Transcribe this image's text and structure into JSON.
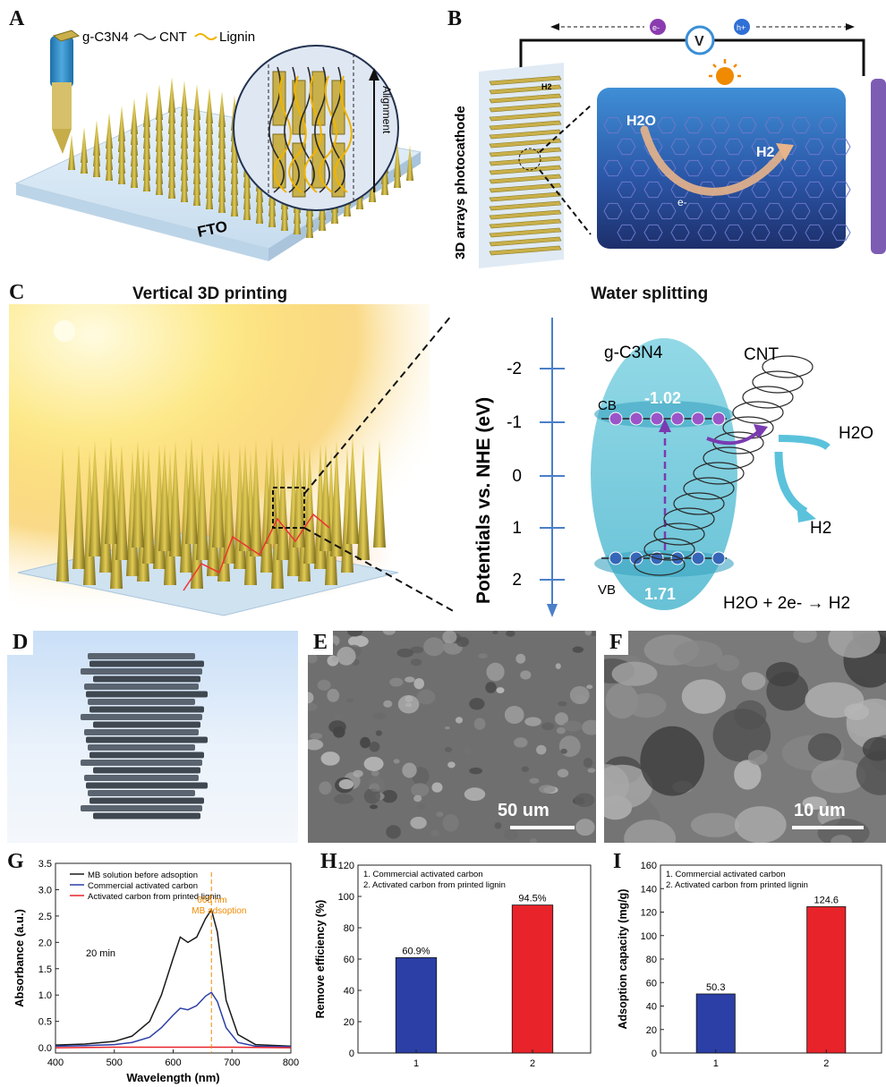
{
  "panels": {
    "A": {
      "letter": "A",
      "legend": [
        {
          "name": "g-C3N4"
        },
        {
          "name": "CNT"
        },
        {
          "name": "Lignin"
        }
      ],
      "substrate": "FTO",
      "alignment": "Alignment",
      "caption": "Vertical 3D printing"
    },
    "B": {
      "letter": "B",
      "side_label": "3D arrays photocathode",
      "h2_small": "H2",
      "h2o": "H2O",
      "h2": "H2",
      "electron": "e-",
      "hole": "h+",
      "volt": "V",
      "caption": "Water splitting"
    },
    "C": {
      "letter": "C",
      "axis_title": "Potentials vs. NHE (eV)",
      "ticks": [
        "-2",
        "-1",
        "0",
        "1",
        "2"
      ],
      "material": "g-C3N4",
      "cnt": "CNT",
      "cb": "CB",
      "vb": "VB",
      "cb_value": "-1.02",
      "vb_value": "1.71",
      "h2o": "H2O",
      "h2": "H2",
      "reaction": "H2O + 2e- → H2"
    },
    "D": {
      "letter": "D"
    },
    "E": {
      "letter": "E",
      "scale": "50 um"
    },
    "F": {
      "letter": "F",
      "scale": "10 um"
    },
    "G": {
      "letter": "G"
    },
    "H": {
      "letter": "H"
    },
    "I": {
      "letter": "I"
    }
  },
  "colors": {
    "cnt_tube": "#2a2a2a",
    "lignin": "#f0b400",
    "gc3n4": "#c9b04a",
    "bar_blue": "#2b3fa6",
    "bar_red": "#e8232a",
    "ellipse": "#5fc3d6",
    "sun": "#f08a00"
  },
  "chart_data": [
    {
      "type": "line",
      "panel": "G",
      "xlabel": "Wavelength (nm)",
      "ylabel": "Absorbance (a.u.)",
      "xlim": [
        400,
        800
      ],
      "ylim": [
        -0.1,
        3.5
      ],
      "xticks": [
        400,
        500,
        600,
        700,
        800
      ],
      "yticks": [
        0.0,
        0.5,
        1.0,
        1.5,
        2.0,
        2.5,
        3.0,
        3.5
      ],
      "annotation_time": "20 min",
      "annotation_peak": "665 nm",
      "annotation_label": "MB adsoption",
      "peak_x": 665,
      "series": [
        {
          "name": "MB solution before adsoption",
          "color": "#1a1a1a",
          "x": [
            400,
            450,
            500,
            530,
            560,
            580,
            600,
            612,
            625,
            640,
            655,
            665,
            675,
            690,
            710,
            740,
            800
          ],
          "y": [
            0.05,
            0.07,
            0.12,
            0.22,
            0.5,
            1.0,
            1.7,
            2.1,
            2.0,
            2.1,
            2.45,
            2.62,
            2.2,
            0.9,
            0.25,
            0.06,
            0.03
          ]
        },
        {
          "name": "Commercial activated carbon",
          "color": "#2b3fa6",
          "x": [
            400,
            450,
            500,
            530,
            560,
            580,
            600,
            612,
            625,
            640,
            655,
            665,
            675,
            690,
            710,
            740,
            800
          ],
          "y": [
            0.03,
            0.04,
            0.06,
            0.1,
            0.2,
            0.38,
            0.62,
            0.75,
            0.72,
            0.8,
            0.98,
            1.05,
            0.88,
            0.38,
            0.1,
            0.03,
            0.02
          ]
        },
        {
          "name": "Activated carbon from printed lignin",
          "color": "#e8232a",
          "x": [
            400,
            500,
            600,
            700,
            800
          ],
          "y": [
            0.0,
            0.01,
            0.01,
            0.01,
            0.0
          ]
        }
      ]
    },
    {
      "type": "bar",
      "panel": "H",
      "xlabel": "",
      "ylabel": "Remove efficiency (%)",
      "ylim": [
        0,
        120
      ],
      "yticks": [
        0,
        20,
        40,
        60,
        80,
        100,
        120
      ],
      "categories": [
        "1",
        "2"
      ],
      "values": [
        60.9,
        94.5
      ],
      "value_labels": [
        "60.9%",
        "94.5%"
      ],
      "bar_colors": [
        "#2b3fa6",
        "#e8232a"
      ],
      "legend": [
        "1. Commercial activated carbon",
        "2. Activated carbon from printed lignin"
      ]
    },
    {
      "type": "bar",
      "panel": "I",
      "xlabel": "",
      "ylabel": "Adsoption capacity (mg/g)",
      "ylim": [
        0,
        160
      ],
      "yticks": [
        0,
        20,
        40,
        60,
        80,
        100,
        120,
        140,
        160
      ],
      "categories": [
        "1",
        "2"
      ],
      "values": [
        50.3,
        124.6
      ],
      "value_labels": [
        "50.3",
        "124.6"
      ],
      "bar_colors": [
        "#2b3fa6",
        "#e8232a"
      ],
      "legend": [
        "1. Commercial activated carbon",
        "2. Activated carbon from printed lignin"
      ]
    }
  ]
}
